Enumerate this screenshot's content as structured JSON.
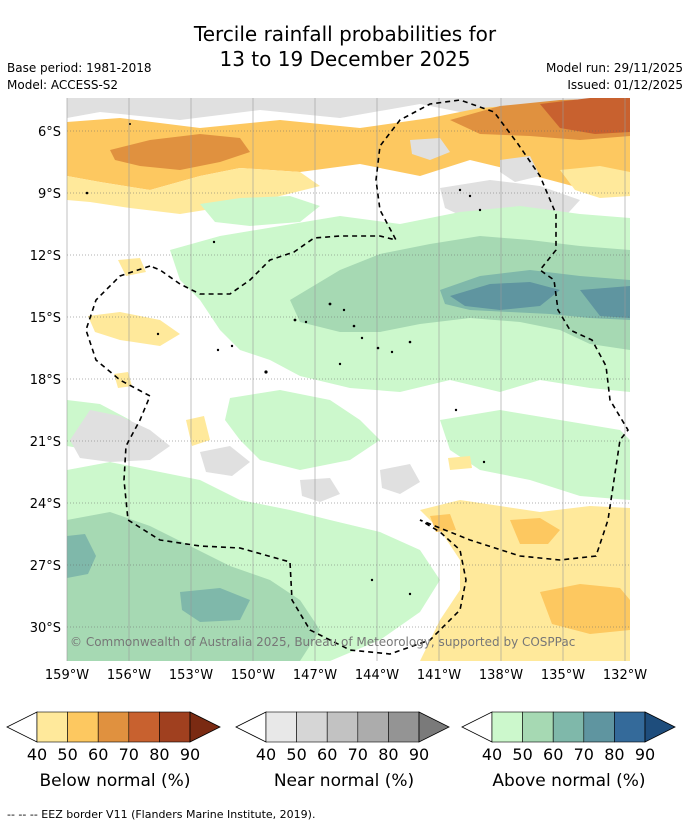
{
  "header": {
    "title_line1": "Tercile rainfall probabilities for",
    "title_line2": "13 to 19 December 2025",
    "base_period": "Base period: 1981-2018",
    "model": "Model: ACCESS-S2",
    "model_run": "Model run: 29/11/2025",
    "issued": "Issued: 01/12/2025"
  },
  "map": {
    "lat_labels": [
      "6°S",
      "9°S",
      "12°S",
      "15°S",
      "18°S",
      "21°S",
      "24°S",
      "27°S",
      "30°S"
    ],
    "lon_labels": [
      "159°W",
      "156°W",
      "153°W",
      "150°W",
      "147°W",
      "144°W",
      "141°W",
      "138°W",
      "135°W",
      "132°W"
    ],
    "copyright": "© Commonwealth of Australia 2025, Bureau of Meteorology, supported by COSPPac"
  },
  "legends": [
    {
      "title": "Below normal (%)",
      "ticks": [
        "40",
        "50",
        "60",
        "70",
        "80",
        "90"
      ],
      "colors": [
        "#ffe99b",
        "#fdc860",
        "#e0913f",
        "#c8612f",
        "#a0401f",
        "#7a2a12"
      ]
    },
    {
      "title": "Near normal (%)",
      "ticks": [
        "40",
        "50",
        "60",
        "70",
        "80",
        "90"
      ],
      "colors": [
        "#e8e8e8",
        "#d6d6d6",
        "#c2c2c2",
        "#acacac",
        "#949494",
        "#7a7a7a"
      ]
    },
    {
      "title": "Above normal (%)",
      "ticks": [
        "40",
        "50",
        "60",
        "70",
        "80",
        "90"
      ],
      "colors": [
        "#ccf8cc",
        "#a6d9b3",
        "#7fb8aa",
        "#5f95a0",
        "#346a9a",
        "#1e4d7c"
      ]
    }
  ],
  "footer": {
    "text": "--  --  -- EEZ border V11 (Flanders Marine Institute, 2019)."
  }
}
